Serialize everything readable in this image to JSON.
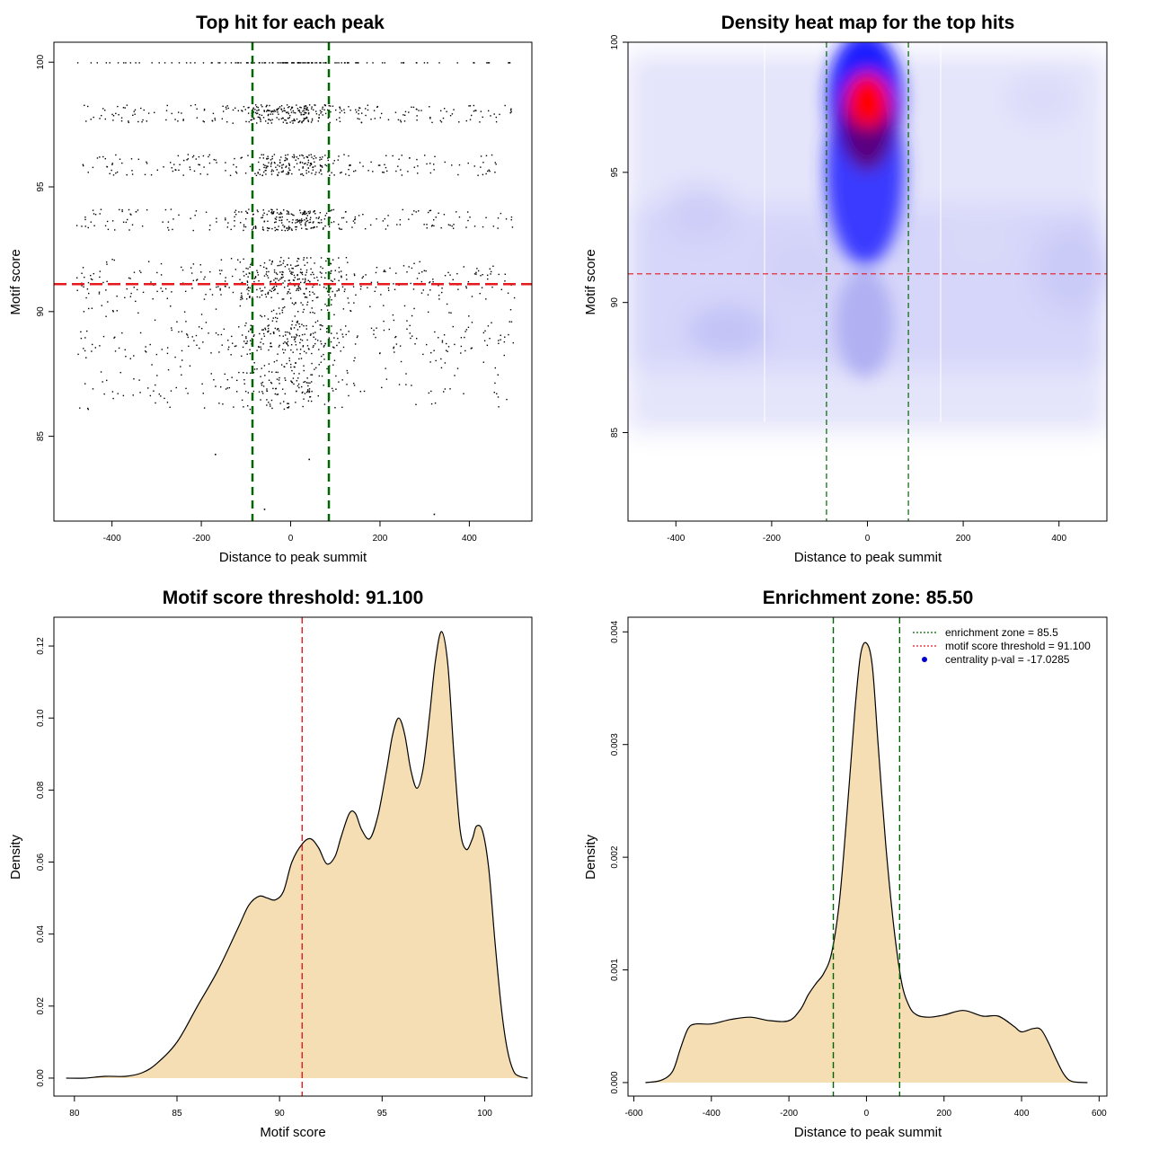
{
  "chart_data": [
    {
      "type": "scatter",
      "title": "Top hit for each peak",
      "xlabel": "Distance to peak summit",
      "ylabel": "Motif score",
      "xlim": [
        -530,
        540
      ],
      "ylim": [
        81.6,
        100.8
      ],
      "xticks": [
        -400,
        -200,
        0,
        200,
        400
      ],
      "yticks": [
        85,
        90,
        95,
        100
      ],
      "xtick_labels": [
        "-400",
        "-200",
        "0",
        "200",
        "400"
      ],
      "ytick_labels": [
        "85",
        "90",
        "95",
        "100"
      ],
      "score_threshold": 91.1,
      "enrichment_zone": [
        -85.5,
        85.5
      ],
      "score_levels": [
        100,
        98.2,
        98.0,
        97.7,
        96.2,
        95.9,
        95.6,
        94.0,
        93.7,
        93.4,
        91.6,
        91.4,
        91.1,
        90.4,
        89.2,
        88.9,
        88.5,
        87.3,
        86.7
      ],
      "outliers": [
        {
          "x": -60,
          "y": 82.1
        },
        {
          "x": 320,
          "y": 81.9
        },
        {
          "x": 40,
          "y": 84.1
        },
        {
          "x": -170,
          "y": 84.3
        }
      ],
      "colors": {
        "points": "#000000",
        "threshold": "#e41a1c",
        "zone": "#006400"
      }
    },
    {
      "type": "heatmap",
      "title": "Density heat map for the top hits",
      "xlabel": "Distance to peak summit",
      "ylabel": "Motif score",
      "xlim": [
        -500,
        500
      ],
      "ylim": [
        81.6,
        100
      ],
      "xticks": [
        -400,
        -200,
        0,
        200,
        400
      ],
      "yticks": [
        85,
        90,
        95,
        100
      ],
      "xtick_labels": [
        "-400",
        "-200",
        "0",
        "200",
        "400"
      ],
      "ytick_labels": [
        "85",
        "90",
        "95",
        "100"
      ],
      "score_threshold": 91.1,
      "enrichment_zone": [
        -85.5,
        85.5
      ],
      "peak": {
        "x": 0,
        "y": 97.8
      },
      "colors": {
        "low": "#ffffff",
        "mid": "#0000ff",
        "high": "#ff0000",
        "threshold": "#e41a1c",
        "zone": "#006400"
      }
    },
    {
      "type": "area",
      "title": "Motif score threshold: 91.100",
      "xlabel": "Motif score",
      "ylabel": "Density",
      "xlim": [
        79,
        102.3
      ],
      "ylim": [
        -0.005,
        0.128
      ],
      "xticks": [
        80,
        85,
        90,
        95,
        100
      ],
      "yticks": [
        0,
        0.02,
        0.04,
        0.06,
        0.08,
        0.1,
        0.12
      ],
      "xtick_labels": [
        "80",
        "85",
        "90",
        "95",
        "100"
      ],
      "ytick_labels": [
        "0.00",
        "0.02",
        "0.04",
        "0.06",
        "0.08",
        "0.10",
        "0.12"
      ],
      "x": [
        79.6,
        80.5,
        81.5,
        82.5,
        83.3,
        84.0,
        85.0,
        86.0,
        87.0,
        88.0,
        88.5,
        89.0,
        89.4,
        89.8,
        90.2,
        90.6,
        91.1,
        91.5,
        91.9,
        92.3,
        92.7,
        93.0,
        93.4,
        93.7,
        94.0,
        94.4,
        94.8,
        95.2,
        95.5,
        95.8,
        96.1,
        96.4,
        96.7,
        97.0,
        97.3,
        97.6,
        97.9,
        98.2,
        98.5,
        98.8,
        99.1,
        99.4,
        99.6,
        99.9,
        100.2,
        100.5,
        100.8,
        101.1,
        101.4,
        101.7,
        102.1
      ],
      "y": [
        0.0,
        0.0,
        0.0005,
        0.0005,
        0.0015,
        0.004,
        0.01,
        0.02,
        0.03,
        0.042,
        0.048,
        0.0505,
        0.05,
        0.0495,
        0.052,
        0.06,
        0.065,
        0.0665,
        0.064,
        0.0595,
        0.0615,
        0.067,
        0.0735,
        0.0735,
        0.069,
        0.0665,
        0.073,
        0.085,
        0.095,
        0.1,
        0.0955,
        0.0855,
        0.0805,
        0.086,
        0.1,
        0.116,
        0.124,
        0.115,
        0.09,
        0.069,
        0.0635,
        0.0665,
        0.07,
        0.0685,
        0.058,
        0.038,
        0.02,
        0.008,
        0.002,
        0.0005,
        0.0
      ],
      "score_threshold": 91.1,
      "colors": {
        "fill": "#f5deb3",
        "line": "#000000",
        "threshold": "#e41a1c"
      }
    },
    {
      "type": "area",
      "title": "Enrichment zone: 85.50",
      "xlabel": "Distance to peak summit",
      "ylabel": "Density",
      "xlim": [
        -615,
        620
      ],
      "ylim": [
        -0.00012,
        0.00413
      ],
      "xticks": [
        -600,
        -400,
        -200,
        0,
        200,
        400,
        600
      ],
      "yticks": [
        0,
        0.001,
        0.002,
        0.003,
        0.004
      ],
      "xtick_labels": [
        "-600",
        "-400",
        "-200",
        "0",
        "200",
        "400",
        "600"
      ],
      "ytick_labels": [
        "0.000",
        "0.001",
        "0.002",
        "0.003",
        "0.004"
      ],
      "x": [
        -570,
        -530,
        -500,
        -480,
        -460,
        -440,
        -400,
        -350,
        -300,
        -250,
        -200,
        -170,
        -150,
        -130,
        -110,
        -90,
        -70,
        -50,
        -30,
        -15,
        0,
        15,
        30,
        50,
        70,
        90,
        110,
        130,
        160,
        200,
        250,
        300,
        340,
        380,
        400,
        430,
        450,
        470,
        490,
        510,
        530,
        570
      ],
      "y": [
        0.0,
        2e-05,
        0.0001,
        0.0003,
        0.00048,
        0.00052,
        0.00052,
        0.00056,
        0.00058,
        0.00055,
        0.00055,
        0.00065,
        0.00078,
        0.00088,
        0.00097,
        0.00115,
        0.0016,
        0.0024,
        0.0033,
        0.0038,
        0.0039,
        0.0037,
        0.003,
        0.0021,
        0.0014,
        0.0009,
        0.00068,
        0.0006,
        0.00058,
        0.0006,
        0.00064,
        0.00059,
        0.00059,
        0.0005,
        0.00045,
        0.00048,
        0.00047,
        0.00035,
        0.0002,
        7e-05,
        1e-05,
        0.0
      ],
      "enrichment_zone": [
        -85.5,
        85.5
      ],
      "legend": [
        {
          "label": "enrichment zone = 85.5",
          "style": "dotted",
          "color": "#006400"
        },
        {
          "label": "motif score threshold = 91.100",
          "style": "dotted",
          "color": "#e41a1c"
        },
        {
          "label": "centrality p-val = -17.0285",
          "style": "point",
          "color": "#0000cd"
        }
      ],
      "legend_position": "top-right",
      "colors": {
        "fill": "#f5deb3",
        "line": "#000000",
        "zone": "#006400"
      }
    }
  ]
}
